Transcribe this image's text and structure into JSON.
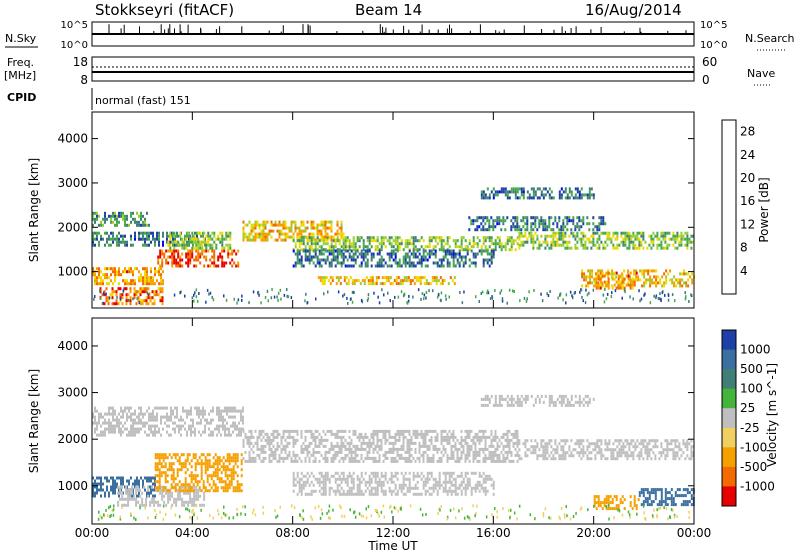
{
  "header": {
    "station": "Stokkseyri (fitACF)",
    "beam": "Beam 14",
    "date": "16/Aug/2014"
  },
  "top_panels": {
    "nsky_label": "N.Sky",
    "nsky_ticks": [
      "10^5",
      "10^0"
    ],
    "nsearch_label": "N.Search",
    "nsearch_ticks": [
      "10^5",
      "10^0"
    ],
    "freq_label": "Freq.",
    "freq_unit": "[MHz]",
    "freq_ticks": [
      "18",
      "8"
    ],
    "nave_label": "Nave",
    "nave_ticks": [
      "60",
      "0"
    ],
    "cpid_label": "CPID",
    "cpid_text": "normal (fast) 151"
  },
  "colors": {
    "power_scale": [
      "#0000ff",
      "#1e3fa6",
      "#3f7f78",
      "#45a84b",
      "#9acd32",
      "#f0d800",
      "#f6a000",
      "#f26a00",
      "#e60000"
    ],
    "velocity_scale": [
      "#1e3fa6",
      "#3a6fa0",
      "#3f7f78",
      "#46b33a",
      "#bfbfbf",
      "#f0d060",
      "#f6a000",
      "#f26a00",
      "#e60000"
    ]
  },
  "chart_data": [
    {
      "type": "heatmap",
      "name": "power",
      "xlabel": "",
      "ylabel": "Slant Range [km]",
      "x_range": [
        "00:00",
        "24:00"
      ],
      "ylim": [
        180,
        4600
      ],
      "yticks": [
        "1000",
        "2000",
        "3000",
        "4000"
      ],
      "colorbar": {
        "label": "Power [dB]",
        "ticks": [
          "4",
          "8",
          "12",
          "16",
          "20",
          "24",
          "28"
        ],
        "range": [
          0,
          30
        ]
      },
      "features": [
        {
          "t": [
            0.0,
            2.3
          ],
          "r": [
            2050,
            2350
          ],
          "v": 10
        },
        {
          "t": [
            0.0,
            4.5
          ],
          "r": [
            1600,
            1900
          ],
          "v": 8
        },
        {
          "t": [
            0.0,
            2.8
          ],
          "r": [
            700,
            1100
          ],
          "v": 22
        },
        {
          "t": [
            0.3,
            2.8
          ],
          "r": [
            300,
            650
          ],
          "v": 24
        },
        {
          "t": [
            2.6,
            5.8
          ],
          "r": [
            1100,
            1500
          ],
          "v": 26
        },
        {
          "t": [
            3.0,
            5.5
          ],
          "r": [
            1550,
            1900
          ],
          "v": 14
        },
        {
          "t": [
            6.0,
            10.0
          ],
          "r": [
            1700,
            2150
          ],
          "v": 20
        },
        {
          "t": [
            8.0,
            17.0
          ],
          "r": [
            1500,
            1800
          ],
          "v": 14
        },
        {
          "t": [
            8.0,
            16.0
          ],
          "r": [
            1150,
            1500
          ],
          "v": 8
        },
        {
          "t": [
            9.0,
            14.5
          ],
          "r": [
            700,
            900
          ],
          "v": 20
        },
        {
          "t": [
            17.0,
            24.0
          ],
          "r": [
            1550,
            1900
          ],
          "v": 14
        },
        {
          "t": [
            15.0,
            20.5
          ],
          "r": [
            1950,
            2250
          ],
          "v": 8
        },
        {
          "t": [
            15.5,
            20.0
          ],
          "r": [
            2650,
            2900
          ],
          "v": 8
        },
        {
          "t": [
            19.5,
            24.0
          ],
          "r": [
            700,
            1050
          ],
          "v": 20
        },
        {
          "t": [
            20.0,
            21.7
          ],
          "r": [
            650,
            1000
          ],
          "v": 22
        }
      ]
    },
    {
      "type": "heatmap",
      "name": "velocity",
      "xlabel": "Time UT",
      "ylabel": "Slant Range [km]",
      "x_range": [
        "00:00",
        "24:00"
      ],
      "xticks": [
        "00:00",
        "04:00",
        "08:00",
        "12:00",
        "16:00",
        "20:00",
        "00:00"
      ],
      "ylim": [
        180,
        4600
      ],
      "yticks": [
        "1000",
        "2000",
        "3000",
        "4000"
      ],
      "colorbar": {
        "label": "Velocity [m s^-1]",
        "ticks": [
          "1000",
          "500",
          "100",
          "25",
          "-25",
          "-100",
          "-500",
          "-1000"
        ]
      },
      "features": [
        {
          "t": [
            0.0,
            6.0
          ],
          "r": [
            2100,
            2700
          ],
          "v": 0
        },
        {
          "t": [
            0.0,
            2.5
          ],
          "r": [
            800,
            1200
          ],
          "v": 200
        },
        {
          "t": [
            1.0,
            4.5
          ],
          "r": [
            600,
            1000
          ],
          "v": 0
        },
        {
          "t": [
            2.5,
            6.0
          ],
          "r": [
            900,
            1700
          ],
          "v": -200
        },
        {
          "t": [
            6.0,
            17.0
          ],
          "r": [
            1500,
            2200
          ],
          "v": 0
        },
        {
          "t": [
            8.0,
            16.0
          ],
          "r": [
            800,
            1300
          ],
          "v": 0
        },
        {
          "t": [
            17.0,
            24.0
          ],
          "r": [
            1550,
            2000
          ],
          "v": 0
        },
        {
          "t": [
            15.5,
            20.0
          ],
          "r": [
            2700,
            2950
          ],
          "v": 0
        },
        {
          "t": [
            20.0,
            21.8
          ],
          "r": [
            500,
            800
          ],
          "v": -400
        },
        {
          "t": [
            21.8,
            24.0
          ],
          "r": [
            600,
            950
          ],
          "v": 200
        }
      ]
    }
  ]
}
